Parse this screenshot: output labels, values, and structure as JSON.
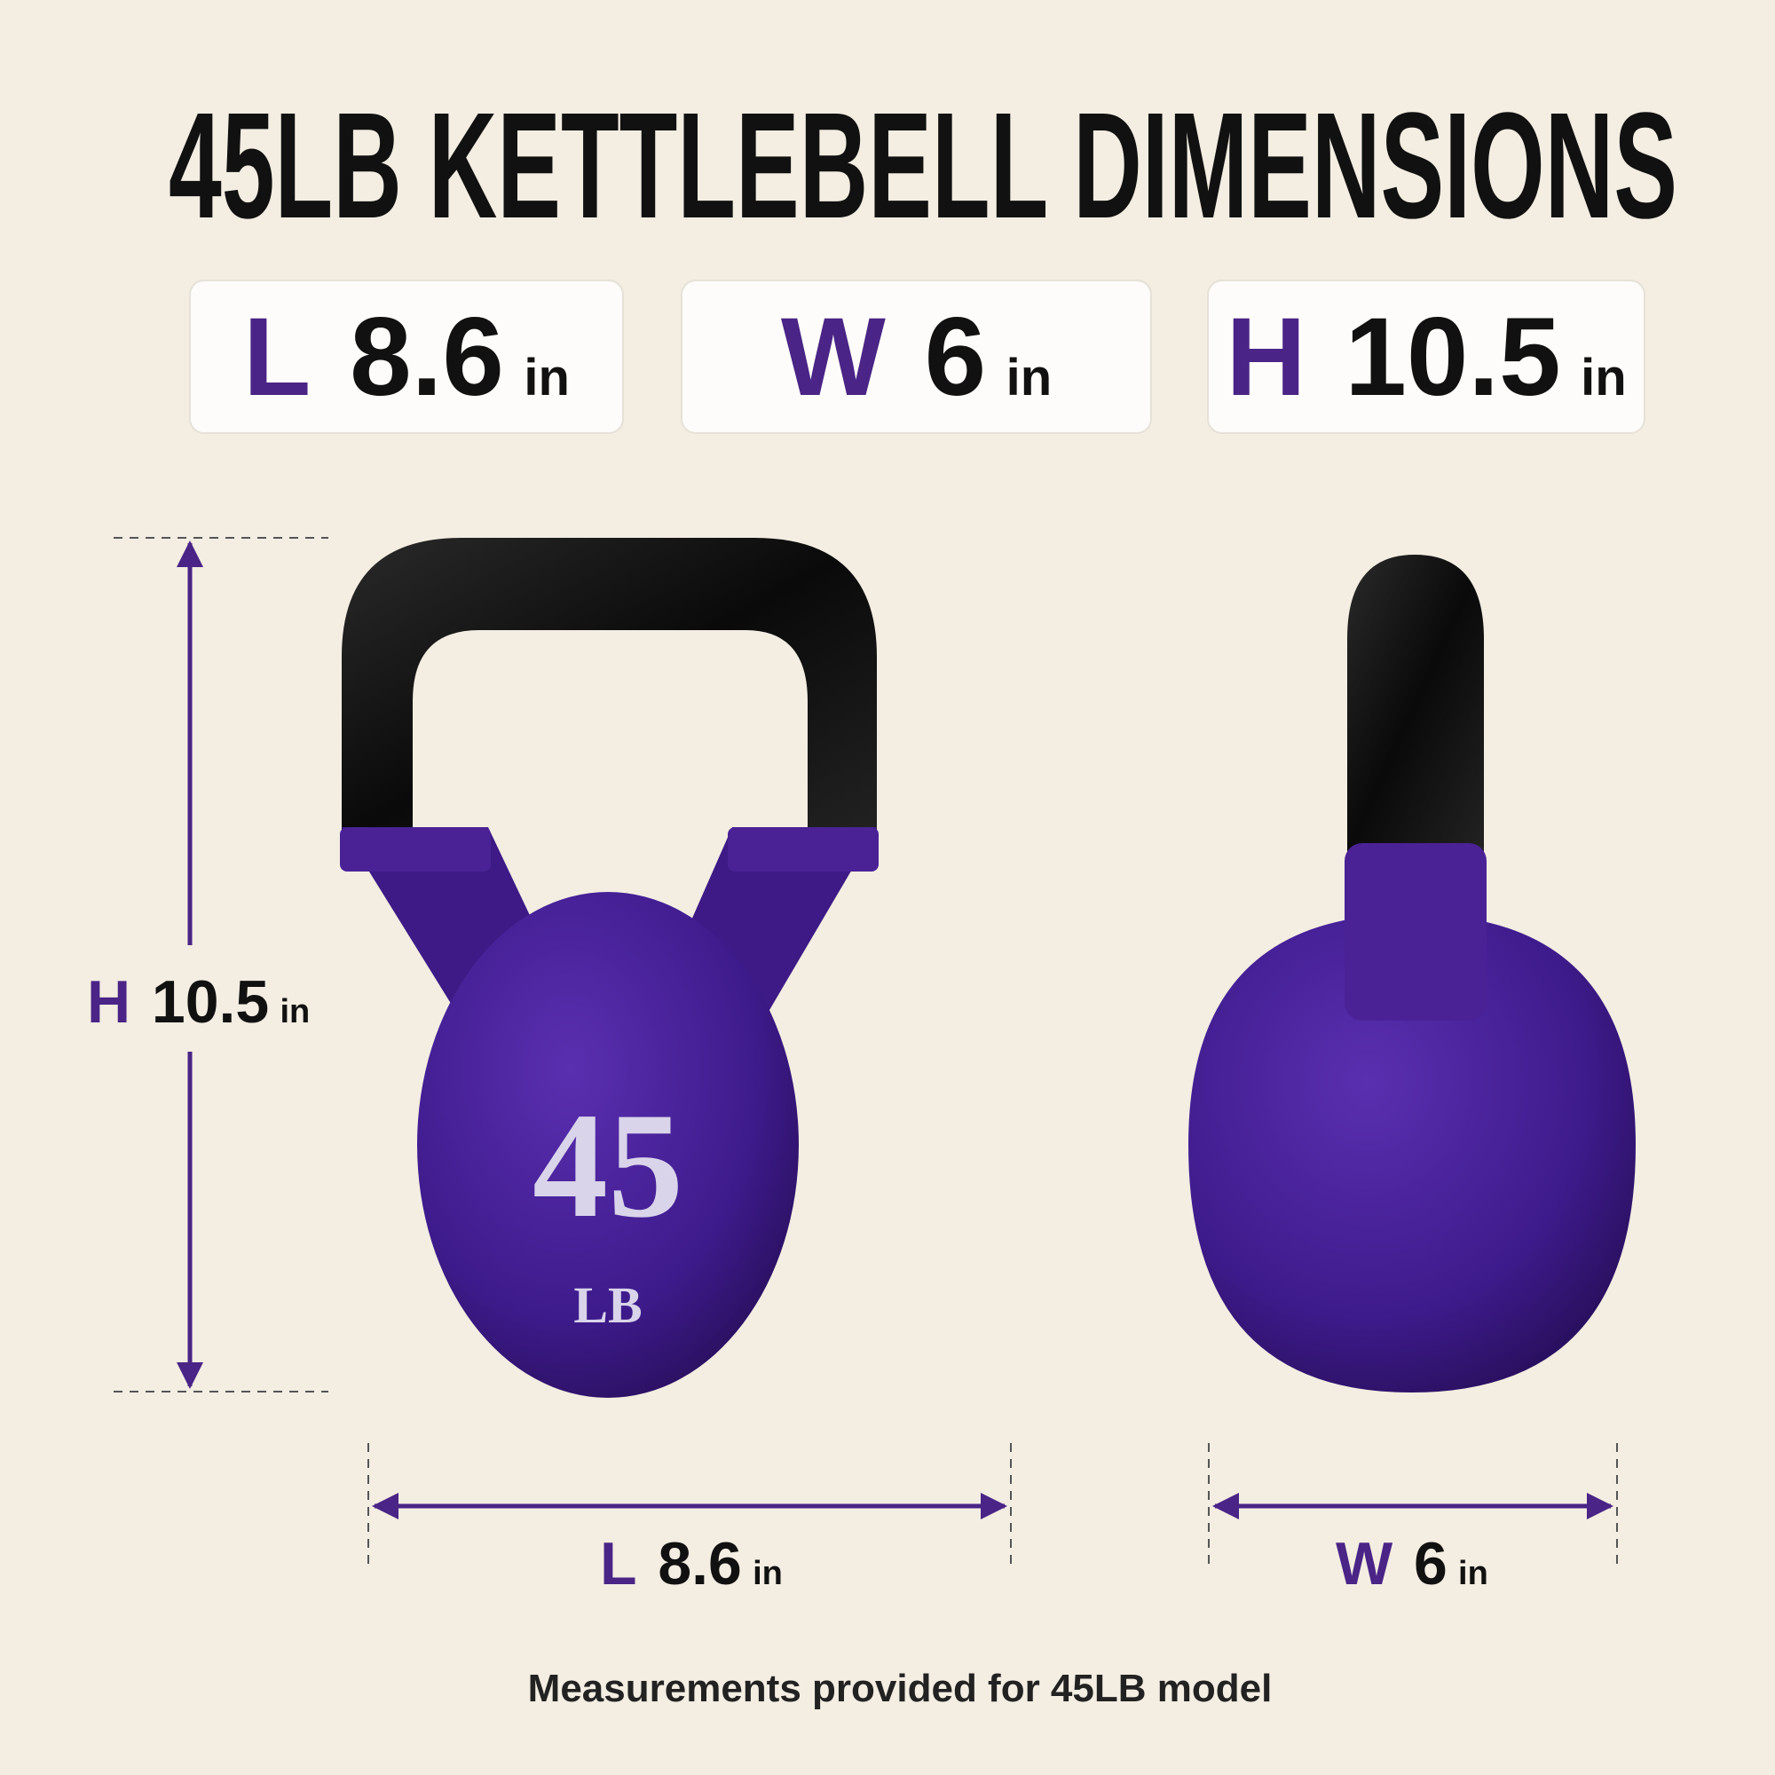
{
  "title": "45LB KETTLEBELL DIMENSIONS",
  "cards": [
    {
      "letter": "L",
      "value": "8.6",
      "unit": "in"
    },
    {
      "letter": "W",
      "value": "6",
      "unit": "in"
    },
    {
      "letter": "H",
      "value": "10.5",
      "unit": "in"
    }
  ],
  "height_label": {
    "letter": "H",
    "value": "10.5",
    "unit": "in"
  },
  "length_label": {
    "letter": "L",
    "value": "8.6",
    "unit": "in"
  },
  "width_label": {
    "letter": "W",
    "value": "6",
    "unit": "in"
  },
  "product_marking": {
    "number": "45",
    "unit": "LB"
  },
  "footer": "Measurements provided for 45LB model"
}
